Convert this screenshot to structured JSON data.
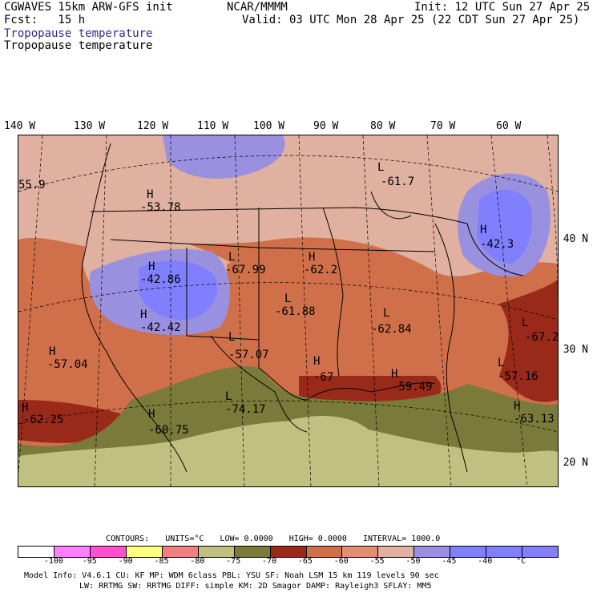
{
  "header": {
    "model_title": "CGWAVES 15km ARW-GFS init",
    "org": "NCAR/MMMM",
    "init": "Init: 12 UTC Sun 27 Apr 25",
    "fcst": "Fcst:   15 h",
    "valid": "Valid: 03 UTC Mon 28 Apr 25 (22 CDT Sun 27 Apr 25)",
    "field_label_blue": "Tropopause temperature",
    "field_label_black": "Tropopause temperature"
  },
  "longitude_labels": [
    "140 W",
    "130 W",
    "120 W",
    "110 W",
    "100 W",
    "90 W",
    "80 W",
    "70 W",
    "60 W"
  ],
  "latitude_labels": [
    "40 N",
    "30 N",
    "20 N"
  ],
  "map_labels": [
    {
      "letter": "H",
      "value": "-53.78"
    },
    {
      "letter": "H",
      "value": "-42.86"
    },
    {
      "letter": "H",
      "value": "-42.42"
    },
    {
      "letter": "L",
      "value": "-67.99"
    },
    {
      "letter": "H",
      "value": "-62.2"
    },
    {
      "letter": "L",
      "value": "-61.88"
    },
    {
      "letter": "L",
      "value": "-62.84"
    },
    {
      "letter": "H",
      "value": "-42.3"
    },
    {
      "letter": "L",
      "value": "-61.7"
    },
    {
      "letter": "",
      "value": "55.9"
    },
    {
      "letter": "H",
      "value": "-57.04"
    },
    {
      "letter": "L",
      "value": "-57.07"
    },
    {
      "letter": "H",
      "value": "-67"
    },
    {
      "letter": "H",
      "value": "-59.49"
    },
    {
      "letter": "L",
      "value": "-67.2"
    },
    {
      "letter": "L",
      "value": "-57.16"
    },
    {
      "letter": "H",
      "value": "-62.25"
    },
    {
      "letter": "H",
      "value": "-60.75"
    },
    {
      "letter": "L",
      "value": "-74.17"
    },
    {
      "letter": "H",
      "value": "-63.13"
    }
  ],
  "legend": {
    "contours": "CONTOURS:",
    "units": "UNITS=°C",
    "low": "LOW=  0.0000",
    "high": "HIGH=  0.0000",
    "interval": "INTERVAL=   1000.0",
    "colors": [
      "#ffffff",
      "#ff80ff",
      "#ff50d0",
      "#ffff80",
      "#f08080",
      "#c0c080",
      "#7a7a3a",
      "#992a1a",
      "#d0704a",
      "#e09070",
      "#e0b0a0",
      "#9a90e0",
      "#8080ff",
      "#8080ff",
      "#8080ff"
    ],
    "ticks": [
      "-100",
      "-95",
      "-90",
      "-85",
      "-80",
      "-75",
      "-70",
      "-65",
      "-60",
      "-55",
      "-50",
      "-45",
      "-40",
      "°C"
    ]
  },
  "footer": {
    "line1": "Model Info: V4.6.1     CU: KF      MP: WDM 6class  PBL: YSU       SF: Noah LSM     15 km   119 levels   90 sec",
    "line2": "LW: RRTMG    SW: RRTMG  DIFF: simple KM: 2D Smagor DAMP: Rayleigh3  SFLAY: MM5"
  }
}
